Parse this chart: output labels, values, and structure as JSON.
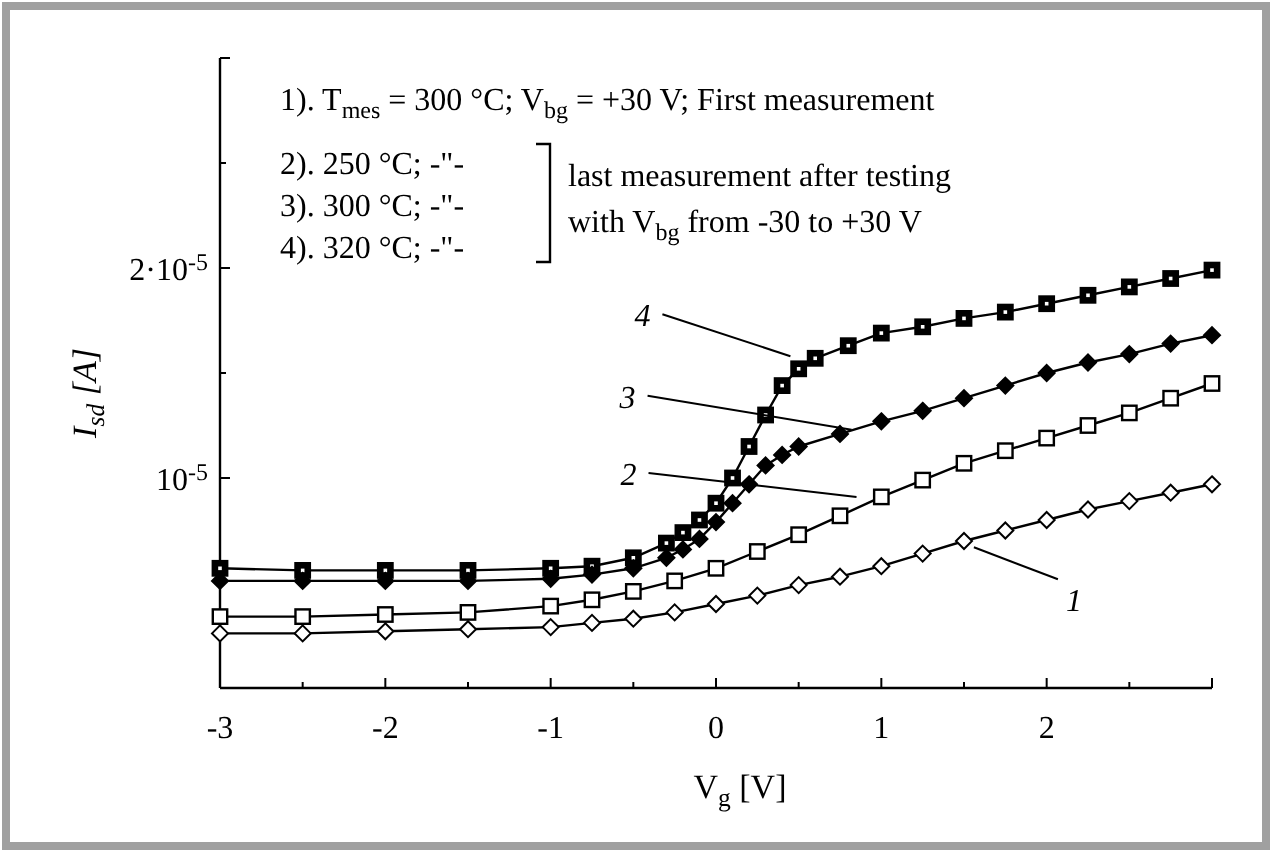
{
  "chart_data": {
    "type": "line",
    "xlabel": "V$_{g}$ [V]",
    "ylabel": "I$_{sd}$ [A]",
    "xlim": [
      -3,
      3
    ],
    "ylim": [
      0,
      3e-05
    ],
    "xticks": [
      -3,
      {
        "value": -2.5,
        "label": null
      },
      -2,
      {
        "value": -1.5,
        "label": null
      },
      -1,
      {
        "value": -0.5,
        "label": null
      },
      0,
      {
        "value": 0.5,
        "label": null
      },
      1,
      {
        "value": 1.5,
        "label": null
      },
      2,
      {
        "value": 2.5,
        "label": null
      },
      {
        "value": 3,
        "label": null
      }
    ],
    "yticks": [
      {
        "value": 5e-06,
        "label": null
      },
      {
        "value": 1e-05,
        "label": "10$^{-5}$"
      },
      {
        "value": 1.5e-05,
        "label": null
      },
      {
        "value": 2e-05,
        "label": "2·10$^{-5}$"
      },
      {
        "value": 2.5e-05,
        "label": null
      },
      {
        "value": 3e-05,
        "label": null
      }
    ],
    "grid": false,
    "line_style": "solid",
    "series": [
      {
        "color": "#000000",
        "marker": "square",
        "x": [
          -3,
          -2.5,
          -2,
          -1.5,
          -1,
          -0.75,
          -0.5,
          -0.3,
          -0.2,
          -0.1,
          0,
          0.1,
          0.2,
          0.3,
          0.4,
          0.5,
          0.6,
          0.8,
          1,
          1.25,
          1.5,
          1.75,
          2,
          2.25,
          2.5,
          2.75,
          3
        ],
        "values": [
          5.7e-06,
          5.6e-06,
          5.6e-06,
          5.6e-06,
          5.7e-06,
          5.8e-06,
          6.2e-06,
          6.9e-06,
          7.4e-06,
          8e-06,
          8.8e-06,
          1e-05,
          1.15e-05,
          1.3e-05,
          1.44e-05,
          1.52e-05,
          1.57e-05,
          1.63e-05,
          1.69e-05,
          1.72e-05,
          1.76e-05,
          1.79e-05,
          1.83e-05,
          1.87e-05,
          1.91e-05,
          1.95e-05,
          1.99e-05
        ]
      },
      {
        "color": "#000000",
        "marker": "diamond",
        "x": [
          -3,
          -2.5,
          -2,
          -1.5,
          -1,
          -0.75,
          -0.5,
          -0.3,
          -0.2,
          -0.1,
          0,
          0.1,
          0.2,
          0.3,
          0.4,
          0.5,
          0.75,
          1,
          1.25,
          1.5,
          1.75,
          2,
          2.25,
          2.5,
          2.75,
          3
        ],
        "values": [
          5.1e-06,
          5.1e-06,
          5.1e-06,
          5.1e-06,
          5.2e-06,
          5.4e-06,
          5.7e-06,
          6.2e-06,
          6.6e-06,
          7.1e-06,
          7.9e-06,
          8.8e-06,
          9.7e-06,
          1.06e-05,
          1.11e-05,
          1.15e-05,
          1.21e-05,
          1.27e-05,
          1.32e-05,
          1.38e-05,
          1.44e-05,
          1.5e-05,
          1.55e-05,
          1.59e-05,
          1.64e-05,
          1.68e-05
        ]
      },
      {
        "color": "#ffffff",
        "marker": "square",
        "x": [
          -3,
          -2.5,
          -2,
          -1.5,
          -1,
          -0.75,
          -0.5,
          -0.25,
          0,
          0.25,
          0.5,
          0.75,
          1,
          1.25,
          1.5,
          1.75,
          2,
          2.25,
          2.5,
          2.75,
          3
        ],
        "values": [
          3.4e-06,
          3.4e-06,
          3.5e-06,
          3.6e-06,
          3.9e-06,
          4.2e-06,
          4.6e-06,
          5.1e-06,
          5.7e-06,
          6.5e-06,
          7.3e-06,
          8.2e-06,
          9.1e-06,
          9.9e-06,
          1.07e-05,
          1.13e-05,
          1.19e-05,
          1.25e-05,
          1.31e-05,
          1.38e-05,
          1.45e-05
        ]
      },
      {
        "color": "#ffffff",
        "marker": "diamond",
        "x": [
          -3,
          -2.5,
          -2,
          -1.5,
          -1,
          -0.75,
          -0.5,
          -0.25,
          0,
          0.25,
          0.5,
          0.75,
          1,
          1.25,
          1.5,
          1.75,
          2,
          2.25,
          2.5,
          2.75,
          3
        ],
        "values": [
          2.6e-06,
          2.6e-06,
          2.7e-06,
          2.8e-06,
          2.9e-06,
          3.1e-06,
          3.3e-06,
          3.6e-06,
          4e-06,
          4.4e-06,
          4.9e-06,
          5.3e-06,
          5.8e-06,
          6.4e-06,
          7e-06,
          7.5e-06,
          8e-06,
          8.5e-06,
          8.9e-06,
          9.3e-06,
          9.7e-06
        ]
      }
    ],
    "annotations": [
      "1). T$_{mes}$ = 300 °C; V$_{bg}$ = +30 V; First measurement",
      "2). 250 °C; -\"-",
      "3). 300 °C; -\"-",
      "4). 320 °C; -\"-",
      "last measurement after testing",
      "with V$_{bg}$ from -30 to +30 V",
      {
        "text": "4",
        "x": 0.45,
        "y": 1.58e-05
      },
      {
        "text": "3",
        "x": 0.82,
        "y": 1.23e-05
      },
      {
        "text": "2",
        "x": 0.85,
        "y": 9.1e-06
      },
      {
        "text": "1",
        "x": 1.56,
        "y": 6.7e-06
      }
    ]
  }
}
